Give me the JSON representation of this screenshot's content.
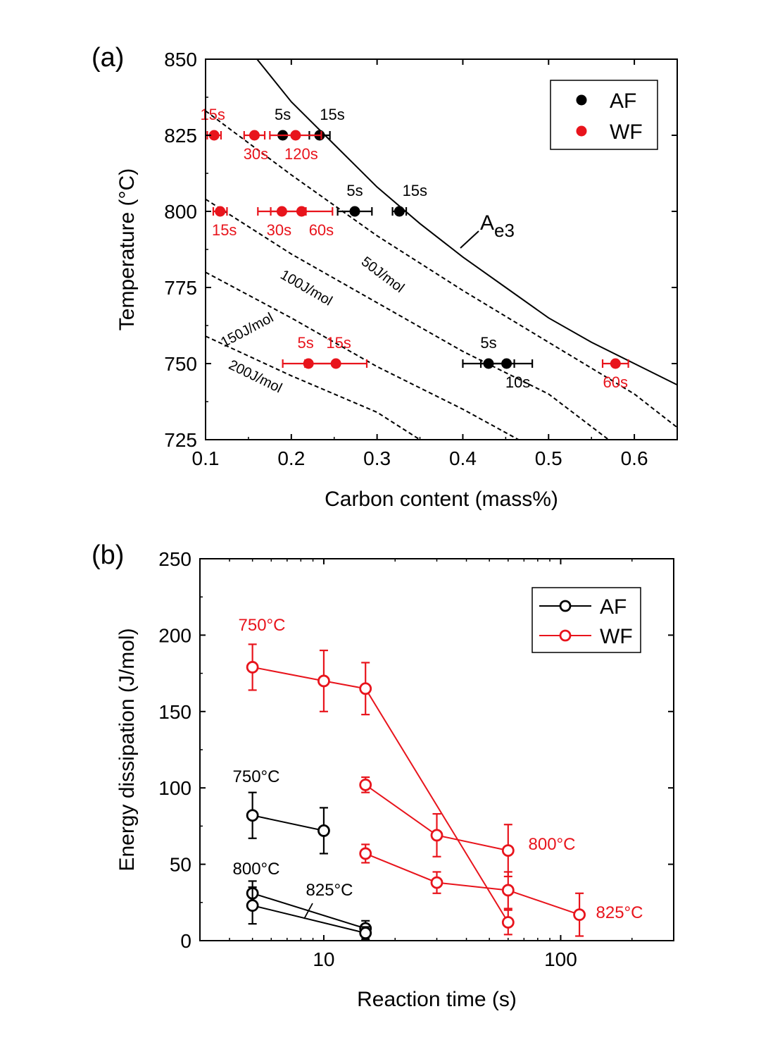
{
  "chart_data": [
    {
      "panel_label": "(a)",
      "type": "scatter",
      "xlabel": "Carbon content (mass%)",
      "ylabel": "Temperature (°C)",
      "xlim": [
        0.1,
        0.65
      ],
      "ylim": [
        725,
        850
      ],
      "xticks": [
        "0.1",
        "0.2",
        "0.3",
        "0.4",
        "0.5",
        "0.6"
      ],
      "yticks": [
        "725",
        "750",
        "775",
        "800",
        "825",
        "850"
      ],
      "legend": {
        "position": "top-right",
        "entries": [
          "AF",
          "WF"
        ]
      },
      "colors": {
        "AF": "#000000",
        "WF": "#e8141c"
      },
      "ae3": {
        "label_main": "A",
        "label_sub": "e3",
        "points": [
          [
            0.16,
            850
          ],
          [
            0.2,
            836
          ],
          [
            0.25,
            822
          ],
          [
            0.3,
            808
          ],
          [
            0.35,
            796
          ],
          [
            0.4,
            785
          ],
          [
            0.45,
            775
          ],
          [
            0.5,
            765
          ],
          [
            0.55,
            757
          ],
          [
            0.6,
            750
          ],
          [
            0.65,
            743
          ]
        ]
      },
      "dissipation_lines": [
        {
          "label": "50J/mol",
          "points": [
            [
              0.1,
              833
            ],
            [
              0.2,
              812
            ],
            [
              0.3,
              792
            ],
            [
              0.4,
              774
            ],
            [
              0.5,
              757
            ],
            [
              0.6,
              740
            ],
            [
              0.65,
              729
            ]
          ]
        },
        {
          "label": "100J/mol",
          "points": [
            [
              0.1,
              804
            ],
            [
              0.2,
              786
            ],
            [
              0.3,
              770
            ],
            [
              0.4,
              754
            ],
            [
              0.5,
              740
            ],
            [
              0.57,
              725
            ]
          ]
        },
        {
          "label": "150J/mol",
          "points": [
            [
              0.1,
              780
            ],
            [
              0.2,
              765
            ],
            [
              0.3,
              749
            ],
            [
              0.4,
              735
            ],
            [
              0.465,
              725
            ]
          ]
        },
        {
          "label": "200J/mol",
          "points": [
            [
              0.1,
              759
            ],
            [
              0.2,
              746
            ],
            [
              0.3,
              734
            ],
            [
              0.35,
              725
            ]
          ]
        }
      ],
      "series": [
        {
          "name": "AF",
          "points": [
            {
              "x": 0.19,
              "y": 825,
              "xerr": 0,
              "label": "5s"
            },
            {
              "x": 0.233,
              "y": 825,
              "xerr": 0.012,
              "label": "15s"
            },
            {
              "x": 0.274,
              "y": 800,
              "xerr": 0.02,
              "label": "5s"
            },
            {
              "x": 0.326,
              "y": 800,
              "xerr": 0.008,
              "label": "15s"
            },
            {
              "x": 0.43,
              "y": 750,
              "xerr": 0.03,
              "label": "5s"
            },
            {
              "x": 0.451,
              "y": 750,
              "xerr": 0.03,
              "label": "10s"
            }
          ]
        },
        {
          "name": "WF",
          "points": [
            {
              "x": 0.11,
              "y": 825,
              "xerr": 0.008,
              "label": "15s"
            },
            {
              "x": 0.157,
              "y": 825,
              "xerr": 0.012,
              "label": "30s"
            },
            {
              "x": 0.205,
              "y": 825,
              "xerr": 0.03,
              "label": "120s"
            },
            {
              "x": 0.117,
              "y": 800,
              "xerr": 0.008,
              "label": "15s"
            },
            {
              "x": 0.189,
              "y": 800,
              "xerr": 0.028,
              "label": "30s"
            },
            {
              "x": 0.212,
              "y": 800,
              "xerr": 0.036,
              "label": "60s"
            },
            {
              "x": 0.22,
              "y": 750,
              "xerr": 0.03,
              "label": "5s"
            },
            {
              "x": 0.252,
              "y": 750,
              "xerr": 0.036,
              "label": "15s"
            },
            {
              "x": 0.578,
              "y": 750,
              "xerr": 0.015,
              "label": "60s"
            }
          ]
        }
      ]
    },
    {
      "panel_label": "(b)",
      "type": "line",
      "xlabel": "Reaction time (s)",
      "ylabel": "Energy dissipation (J/mol)",
      "xscale": "log",
      "xlim": [
        3,
        300
      ],
      "ylim": [
        0,
        250
      ],
      "xticks": [
        "10",
        "100"
      ],
      "yticks": [
        "0",
        "50",
        "100",
        "150",
        "200",
        "250"
      ],
      "legend": {
        "position": "top-right",
        "entries": [
          "AF",
          "WF"
        ]
      },
      "colors": {
        "AF": "#000000",
        "WF": "#e8141c"
      },
      "series": [
        {
          "name": "AF",
          "label": "750°C",
          "points": [
            {
              "x": 5,
              "y": 82,
              "err": 15
            },
            {
              "x": 10,
              "y": 72,
              "err": 15
            }
          ]
        },
        {
          "name": "AF",
          "label": "800°C",
          "points": [
            {
              "x": 5,
              "y": 31,
              "err": 8
            },
            {
              "x": 15,
              "y": 8,
              "err": 5
            }
          ]
        },
        {
          "name": "AF",
          "label": "825°C",
          "points": [
            {
              "x": 5,
              "y": 23,
              "err": 12
            },
            {
              "x": 15,
              "y": 5,
              "err": 4
            }
          ]
        },
        {
          "name": "WF",
          "label": "750°C",
          "points": [
            {
              "x": 5,
              "y": 179,
              "err": 15
            },
            {
              "x": 10,
              "y": 170,
              "err": 20
            },
            {
              "x": 15,
              "y": 165,
              "err": 17
            },
            {
              "x": 60,
              "y": 12,
              "err": 8
            }
          ]
        },
        {
          "name": "WF",
          "label": "800°C",
          "points": [
            {
              "x": 15,
              "y": 102,
              "err": 5
            },
            {
              "x": 30,
              "y": 69,
              "err": 14
            },
            {
              "x": 60,
              "y": 59,
              "err": 17
            }
          ]
        },
        {
          "name": "WF",
          "label": "825°C",
          "points": [
            {
              "x": 15,
              "y": 57,
              "err": 6
            },
            {
              "x": 30,
              "y": 38,
              "err": 7
            },
            {
              "x": 60,
              "y": 33,
              "err": 12
            },
            {
              "x": 120,
              "y": 17,
              "err": 14
            }
          ]
        }
      ],
      "annotations": [
        {
          "text": "750°C",
          "series": "WF"
        },
        {
          "text": "750°C",
          "series": "AF"
        },
        {
          "text": "800°C",
          "series": "AF"
        },
        {
          "text": "825°C",
          "series": "AF"
        },
        {
          "text": "800°C",
          "series": "WF"
        },
        {
          "text": "825°C",
          "series": "WF"
        }
      ]
    }
  ]
}
